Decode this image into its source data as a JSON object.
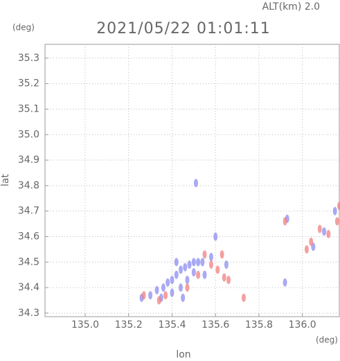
{
  "chart_data": {
    "type": "scatter",
    "title": "2021/05/22 01:01:11",
    "subtitle": "ALT(km) 2.0",
    "y_unit": "(deg)",
    "x_unit": "(deg)",
    "x_label": "lon",
    "y_label": "lat",
    "xlim": [
      134.815,
      136.17
    ],
    "ylim": [
      34.286,
      35.354
    ],
    "xticks": [
      {
        "value": 135.0,
        "label": "135.0"
      },
      135.2,
      135.4,
      135.6,
      135.8,
      {
        "value": 136.0,
        "label": "136.0"
      }
    ],
    "yticks": [
      34.3,
      34.4,
      34.5,
      34.6,
      34.7,
      34.8,
      34.9,
      {
        "value": 35.0,
        "label": "35.0"
      },
      35.1,
      35.2,
      35.3
    ],
    "grid": true,
    "series": [
      {
        "color": "#8c8cf0",
        "x": [
          135.26,
          135.3,
          135.33,
          135.36,
          135.38,
          135.4,
          135.42,
          135.44,
          135.46,
          135.48,
          135.5,
          135.52,
          135.54,
          135.4,
          135.44,
          135.47,
          135.5,
          135.35,
          135.45,
          135.55,
          135.58,
          135.6,
          135.51,
          135.92,
          135.93,
          136.05,
          136.1,
          136.15,
          135.65,
          135.42
        ],
        "y": [
          34.36,
          34.37,
          34.39,
          34.4,
          34.42,
          34.43,
          34.45,
          34.47,
          34.48,
          34.49,
          34.5,
          34.5,
          34.5,
          34.38,
          34.4,
          34.43,
          34.46,
          34.36,
          34.36,
          34.45,
          34.52,
          34.6,
          34.81,
          34.42,
          34.67,
          34.56,
          34.62,
          34.7,
          34.49,
          34.5
        ]
      },
      {
        "color": "#f08080",
        "x": [
          135.27,
          135.34,
          135.37,
          135.55,
          135.61,
          135.64,
          135.66,
          135.58,
          135.63,
          135.73,
          135.92,
          136.04,
          136.08,
          136.12,
          136.16,
          136.17,
          136.02,
          135.47,
          135.52
        ],
        "y": [
          34.37,
          34.35,
          34.37,
          34.53,
          34.47,
          34.44,
          34.43,
          34.49,
          34.53,
          34.36,
          34.66,
          34.58,
          34.63,
          34.61,
          34.66,
          34.72,
          34.55,
          34.4,
          34.45
        ]
      }
    ]
  }
}
